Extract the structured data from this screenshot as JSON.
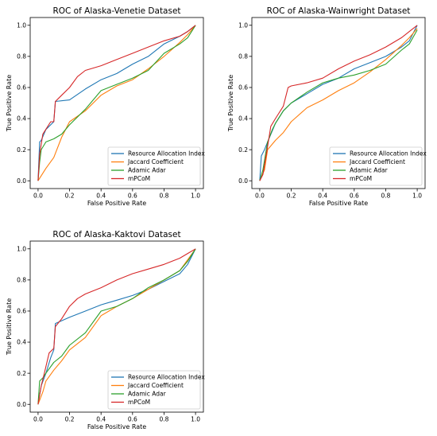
{
  "colors": {
    "resource_allocation": "#1f77b4",
    "jaccard": "#ff7f0e",
    "adamic_adar": "#2ca02c",
    "mpcom": "#d62728"
  },
  "chart_data": [
    {
      "type": "line",
      "title": "ROC of Alaska-Venetie Dataset",
      "xlabel": "False Positive Rate",
      "ylabel": "True Positive Rate",
      "xlim": [
        0.0,
        1.0
      ],
      "ylim": [
        0.0,
        1.0
      ],
      "xticks": [
        "0.0",
        "0.2",
        "0.4",
        "0.6",
        "0.8",
        "1.0"
      ],
      "yticks": [
        "0.0",
        "0.2",
        "0.4",
        "0.6",
        "0.8",
        "1.0"
      ],
      "grid": false,
      "legend": "bottom-right",
      "series": [
        {
          "name": "Resource Allocation Index",
          "color_key": "resource_allocation",
          "x": [
            0.0,
            0.01,
            0.02,
            0.05,
            0.1,
            0.11,
            0.2,
            0.3,
            0.4,
            0.5,
            0.6,
            0.7,
            0.8,
            0.9,
            0.95,
            1.0
          ],
          "y": [
            0.0,
            0.25,
            0.26,
            0.33,
            0.38,
            0.51,
            0.52,
            0.59,
            0.65,
            0.69,
            0.75,
            0.8,
            0.88,
            0.93,
            0.96,
            1.0
          ]
        },
        {
          "name": "Jaccard Coefficient",
          "color_key": "jaccard",
          "x": [
            0.0,
            0.05,
            0.1,
            0.15,
            0.2,
            0.3,
            0.4,
            0.5,
            0.6,
            0.7,
            0.8,
            0.9,
            0.95,
            1.0
          ],
          "y": [
            0.0,
            0.08,
            0.15,
            0.28,
            0.38,
            0.45,
            0.55,
            0.61,
            0.65,
            0.72,
            0.8,
            0.89,
            0.94,
            1.0
          ]
        },
        {
          "name": "Adamic Adar",
          "color_key": "adamic_adar",
          "x": [
            0.0,
            0.01,
            0.02,
            0.05,
            0.1,
            0.15,
            0.2,
            0.3,
            0.4,
            0.5,
            0.6,
            0.7,
            0.8,
            0.9,
            0.95,
            1.0
          ],
          "y": [
            0.0,
            0.12,
            0.2,
            0.25,
            0.27,
            0.3,
            0.36,
            0.46,
            0.58,
            0.62,
            0.66,
            0.71,
            0.82,
            0.88,
            0.92,
            1.0
          ]
        },
        {
          "name": "mPCoM",
          "color_key": "mpcom",
          "x": [
            0.0,
            0.01,
            0.03,
            0.08,
            0.1,
            0.11,
            0.15,
            0.2,
            0.25,
            0.3,
            0.4,
            0.5,
            0.6,
            0.7,
            0.8,
            0.9,
            0.95,
            1.0
          ],
          "y": [
            0.0,
            0.17,
            0.3,
            0.38,
            0.38,
            0.51,
            0.55,
            0.6,
            0.67,
            0.71,
            0.74,
            0.78,
            0.82,
            0.86,
            0.9,
            0.93,
            0.96,
            1.0
          ]
        }
      ]
    },
    {
      "type": "line",
      "title": "ROC of Alaska-Wainwright Dataset",
      "xlabel": "False Positive Rate",
      "ylabel": "True Positive Rate",
      "xlim": [
        0.0,
        1.0
      ],
      "ylim": [
        0.0,
        1.0
      ],
      "xticks": [
        "0.0",
        "0.2",
        "0.4",
        "0.6",
        "0.8",
        "1.0"
      ],
      "yticks": [
        "0.0",
        "0.2",
        "0.4",
        "0.6",
        "0.8",
        "1.0"
      ],
      "grid": false,
      "legend": "bottom-right",
      "series": [
        {
          "name": "Resource Allocation Index",
          "color_key": "resource_allocation",
          "x": [
            0.0,
            0.01,
            0.03,
            0.05,
            0.1,
            0.15,
            0.2,
            0.3,
            0.4,
            0.5,
            0.6,
            0.7,
            0.8,
            0.9,
            0.95,
            1.0
          ],
          "y": [
            0.0,
            0.16,
            0.2,
            0.25,
            0.37,
            0.45,
            0.5,
            0.56,
            0.62,
            0.66,
            0.72,
            0.76,
            0.8,
            0.86,
            0.9,
            1.0
          ]
        },
        {
          "name": "Jaccard Coefficient",
          "color_key": "jaccard",
          "x": [
            0.0,
            0.03,
            0.05,
            0.1,
            0.15,
            0.2,
            0.3,
            0.4,
            0.5,
            0.6,
            0.7,
            0.8,
            0.9,
            0.95,
            1.0
          ],
          "y": [
            0.0,
            0.07,
            0.2,
            0.26,
            0.31,
            0.38,
            0.47,
            0.52,
            0.58,
            0.63,
            0.7,
            0.78,
            0.87,
            0.92,
            0.98
          ]
        },
        {
          "name": "Adamic Adar",
          "color_key": "adamic_adar",
          "x": [
            0.0,
            0.02,
            0.05,
            0.08,
            0.1,
            0.15,
            0.2,
            0.3,
            0.4,
            0.5,
            0.6,
            0.7,
            0.8,
            0.9,
            0.95,
            1.0
          ],
          "y": [
            0.0,
            0.07,
            0.25,
            0.33,
            0.37,
            0.45,
            0.5,
            0.57,
            0.63,
            0.66,
            0.68,
            0.71,
            0.75,
            0.84,
            0.88,
            0.97
          ]
        },
        {
          "name": "mPCoM",
          "color_key": "mpcom",
          "x": [
            0.0,
            0.02,
            0.05,
            0.07,
            0.1,
            0.15,
            0.18,
            0.2,
            0.3,
            0.4,
            0.5,
            0.6,
            0.7,
            0.8,
            0.9,
            0.95,
            1.0
          ],
          "y": [
            0.0,
            0.04,
            0.22,
            0.35,
            0.4,
            0.48,
            0.6,
            0.61,
            0.63,
            0.66,
            0.72,
            0.77,
            0.81,
            0.86,
            0.92,
            0.96,
            1.0
          ]
        }
      ]
    },
    {
      "type": "line",
      "title": "ROC of Alaska-Kaktovi Dataset",
      "xlabel": "False Positive Rate",
      "ylabel": "True Positive Rate",
      "xlim": [
        0.0,
        1.0
      ],
      "ylim": [
        0.0,
        1.0
      ],
      "xticks": [
        "0.0",
        "0.2",
        "0.4",
        "0.6",
        "0.8",
        "1.0"
      ],
      "yticks": [
        "0.0",
        "0.2",
        "0.4",
        "0.6",
        "0.8",
        "1.0"
      ],
      "grid": false,
      "legend": "bottom-right",
      "series": [
        {
          "name": "Resource Allocation Index",
          "color_key": "resource_allocation",
          "x": [
            0.0,
            0.02,
            0.05,
            0.08,
            0.1,
            0.11,
            0.2,
            0.3,
            0.4,
            0.5,
            0.6,
            0.7,
            0.8,
            0.9,
            0.95,
            1.0
          ],
          "y": [
            0.0,
            0.12,
            0.2,
            0.3,
            0.35,
            0.52,
            0.56,
            0.6,
            0.64,
            0.67,
            0.7,
            0.74,
            0.79,
            0.84,
            0.9,
            1.0
          ]
        },
        {
          "name": "Jaccard Coefficient",
          "color_key": "jaccard",
          "x": [
            0.0,
            0.03,
            0.05,
            0.1,
            0.15,
            0.2,
            0.3,
            0.4,
            0.5,
            0.6,
            0.7,
            0.8,
            0.9,
            0.95,
            1.0
          ],
          "y": [
            0.0,
            0.08,
            0.15,
            0.22,
            0.28,
            0.35,
            0.43,
            0.57,
            0.63,
            0.68,
            0.74,
            0.8,
            0.86,
            0.93,
            1.0
          ]
        },
        {
          "name": "Adamic Adar",
          "color_key": "adamic_adar",
          "x": [
            0.0,
            0.01,
            0.03,
            0.05,
            0.1,
            0.15,
            0.2,
            0.3,
            0.4,
            0.5,
            0.6,
            0.7,
            0.8,
            0.9,
            0.95,
            1.0
          ],
          "y": [
            0.0,
            0.15,
            0.17,
            0.2,
            0.27,
            0.31,
            0.38,
            0.46,
            0.6,
            0.63,
            0.68,
            0.75,
            0.8,
            0.86,
            0.92,
            1.0
          ]
        },
        {
          "name": "mPCoM",
          "color_key": "mpcom",
          "x": [
            0.0,
            0.02,
            0.04,
            0.07,
            0.1,
            0.11,
            0.15,
            0.2,
            0.25,
            0.3,
            0.4,
            0.5,
            0.6,
            0.7,
            0.8,
            0.9,
            0.95,
            1.0
          ],
          "y": [
            0.0,
            0.12,
            0.2,
            0.33,
            0.36,
            0.5,
            0.55,
            0.63,
            0.68,
            0.71,
            0.75,
            0.8,
            0.84,
            0.87,
            0.9,
            0.94,
            0.97,
            1.0
          ]
        }
      ]
    }
  ]
}
